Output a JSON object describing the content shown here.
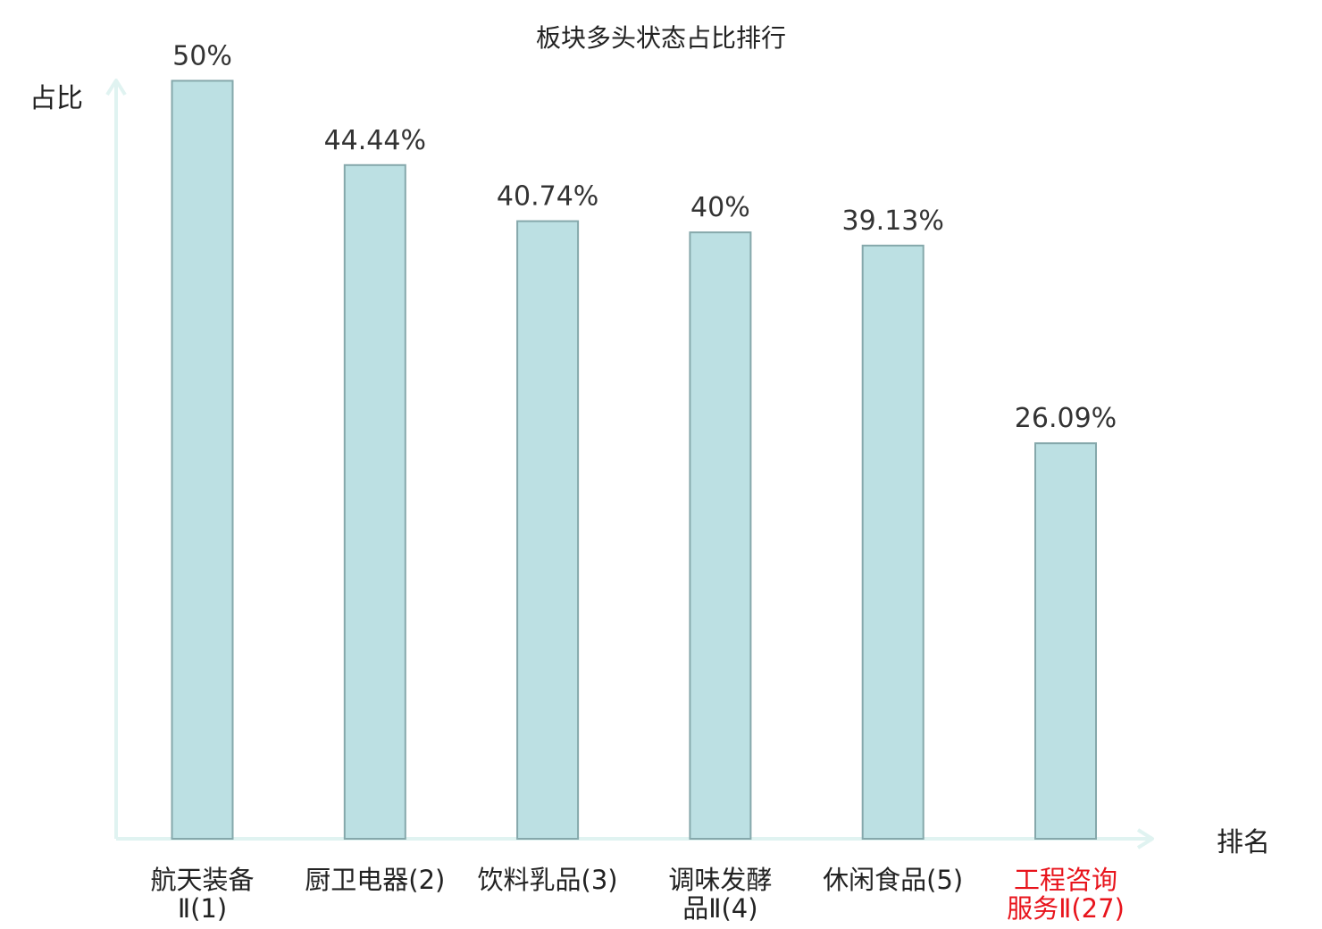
{
  "chart_data": {
    "type": "bar",
    "title": "板块多头状态占比排行",
    "xlabel": "排名",
    "ylabel": "占比",
    "ylim": [
      0,
      52.5
    ],
    "grid": false,
    "legend": "none",
    "categories": [
      {
        "name": "航天装备Ⅱ",
        "rank": "(1)",
        "lines": [
          "航天装备",
          "Ⅱ(1)"
        ],
        "highlight": false
      },
      {
        "name": "厨卫电器",
        "rank": "(2)",
        "lines": [
          "厨卫电器(2)"
        ],
        "highlight": false
      },
      {
        "name": "饮料乳品",
        "rank": "(3)",
        "lines": [
          "饮料乳品(3)"
        ],
        "highlight": false
      },
      {
        "name": "调味发酵品Ⅱ",
        "rank": "(4)",
        "lines": [
          "调味发酵",
          "品Ⅱ(4)"
        ],
        "highlight": false
      },
      {
        "name": "休闲食品",
        "rank": "(5)",
        "lines": [
          "休闲食品(5)"
        ],
        "highlight": false
      },
      {
        "name": "工程咨询服务Ⅱ",
        "rank": "(27)",
        "lines": [
          "工程咨询",
          "服务Ⅱ(27)"
        ],
        "highlight": true
      }
    ],
    "values": [
      50,
      44.44,
      40.74,
      40,
      39.13,
      26.09
    ],
    "value_labels": [
      "50%",
      "44.44%",
      "40.74%",
      "40%",
      "39.13%",
      "26.09%"
    ]
  },
  "colors": {
    "bar_fill": "#bce0e3",
    "bar_stroke": "#85a8ab",
    "axis": "#e0f3f1",
    "text": "#222222",
    "highlight_text": "#e8141c"
  }
}
